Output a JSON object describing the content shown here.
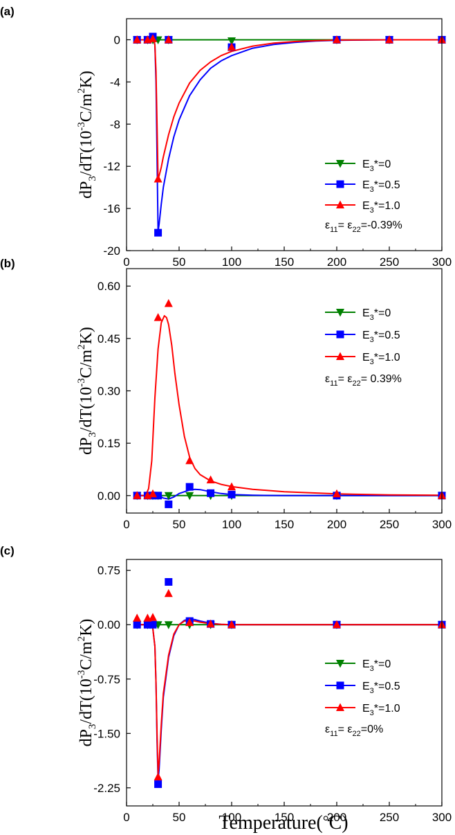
{
  "figure": {
    "xlabel_main": "Temperature(",
    "xlabel_degree": "°",
    "xlabel_unit": "C)"
  },
  "ylabel": {
    "p1": "dP",
    "s1": "3",
    "p2": "/dT(10",
    "s2": "-3",
    "p3": "C/m",
    "s3": "2",
    "p4": "K)"
  },
  "legend_text": {
    "prefix": "E",
    "sub": "3",
    "entries": [
      "*=0",
      "*=0.5",
      "*=1.0"
    ]
  },
  "chart_data": [
    {
      "type": "line",
      "panel_label": "(a)",
      "xlim": [
        0,
        300
      ],
      "ylim": [
        -20,
        2
      ],
      "x_ticks": [
        "0",
        "50",
        "100",
        "150",
        "200",
        "250",
        "300"
      ],
      "y_ticks": [
        "0",
        "-4",
        "-8",
        "-12",
        "-16",
        "-20"
      ],
      "y_tick_values": [
        0,
        -4,
        -8,
        -12,
        -16,
        -20
      ],
      "strain_label": {
        "e1": "ε",
        "s1": "11",
        "mid": "= ε",
        "s2": "22",
        "val": "=-0.39%"
      },
      "series": [
        {
          "name": "E3*=0",
          "color": "#008000",
          "marker": "triangle-down",
          "x": [
            10,
            20,
            25,
            30,
            40,
            100,
            200,
            250,
            300
          ],
          "y": [
            0,
            0,
            0,
            0,
            0,
            -0.1,
            0,
            0,
            0
          ],
          "curve": [
            [
              10,
              0
            ],
            [
              300,
              0
            ]
          ]
        },
        {
          "name": "E3*=0.5",
          "color": "#0000ff",
          "marker": "square",
          "x": [
            10,
            20,
            25,
            30,
            40,
            100,
            200,
            250,
            300
          ],
          "y": [
            0,
            0,
            0.3,
            -18.3,
            0,
            -0.7,
            0,
            0,
            0
          ],
          "curve": [
            [
              10,
              0
            ],
            [
              22,
              0
            ],
            [
              25,
              0.3
            ],
            [
              27,
              -0.5
            ],
            [
              28,
              -4
            ],
            [
              29,
              -11
            ],
            [
              30,
              -18.2
            ],
            [
              31,
              -17.5
            ],
            [
              33,
              -15.6
            ],
            [
              35,
              -14.0
            ],
            [
              40,
              -11.3
            ],
            [
              45,
              -9.2
            ],
            [
              50,
              -7.6
            ],
            [
              60,
              -5.3
            ],
            [
              70,
              -3.8
            ],
            [
              80,
              -2.7
            ],
            [
              90,
              -2.0
            ],
            [
              100,
              -1.5
            ],
            [
              120,
              -0.8
            ],
            [
              140,
              -0.45
            ],
            [
              160,
              -0.25
            ],
            [
              180,
              -0.12
            ],
            [
              200,
              -0.05
            ],
            [
              250,
              0
            ],
            [
              300,
              0
            ]
          ]
        },
        {
          "name": "E3*=1.0",
          "color": "#ff0000",
          "marker": "triangle-up",
          "x": [
            10,
            20,
            25,
            30,
            40,
            100,
            200,
            250,
            300
          ],
          "y": [
            0,
            0,
            0.1,
            -13.2,
            0,
            -0.7,
            0,
            0,
            0
          ],
          "curve": [
            [
              10,
              0
            ],
            [
              22,
              0
            ],
            [
              26,
              0.1
            ],
            [
              27,
              -0.5
            ],
            [
              28,
              -3
            ],
            [
              29,
              -8
            ],
            [
              30,
              -13.2
            ],
            [
              31,
              -12.9
            ],
            [
              33,
              -12.1
            ],
            [
              35,
              -11.1
            ],
            [
              40,
              -9.0
            ],
            [
              45,
              -7.3
            ],
            [
              50,
              -6.0
            ],
            [
              60,
              -4.1
            ],
            [
              70,
              -2.9
            ],
            [
              80,
              -2.1
            ],
            [
              90,
              -1.5
            ],
            [
              100,
              -1.1
            ],
            [
              120,
              -0.6
            ],
            [
              140,
              -0.32
            ],
            [
              160,
              -0.17
            ],
            [
              180,
              -0.08
            ],
            [
              200,
              -0.03
            ],
            [
              250,
              0
            ],
            [
              300,
              0
            ]
          ]
        }
      ]
    },
    {
      "type": "line",
      "panel_label": "(b)",
      "xlim": [
        0,
        300
      ],
      "ylim": [
        -0.05,
        0.65
      ],
      "x_ticks": [
        "0",
        "50",
        "100",
        "150",
        "200",
        "250",
        "300"
      ],
      "y_ticks": [
        "0.60",
        "0.45",
        "0.30",
        "0.15",
        "0.00"
      ],
      "y_tick_values": [
        0.6,
        0.45,
        0.3,
        0.15,
        0
      ],
      "strain_label": {
        "e1": "ε",
        "s1": "11",
        "mid": "= ε",
        "s2": "22",
        "val": "= 0.39%"
      },
      "series": [
        {
          "name": "E3*=0",
          "color": "#008000",
          "marker": "triangle-down",
          "x": [
            10,
            20,
            25,
            30,
            40,
            60,
            80,
            100,
            200,
            300
          ],
          "y": [
            0,
            0,
            0,
            0,
            0,
            0,
            0,
            0,
            0,
            0
          ],
          "curve": [
            [
              10,
              0
            ],
            [
              300,
              0
            ]
          ]
        },
        {
          "name": "E3*=0.5",
          "color": "#0000ff",
          "marker": "square",
          "x": [
            10,
            20,
            25,
            30,
            40,
            60,
            80,
            100,
            200,
            300
          ],
          "y": [
            0,
            0,
            0,
            0,
            -0.025,
            0.025,
            0.007,
            0.003,
            0,
            0
          ],
          "curve": [
            [
              10,
              0
            ],
            [
              30,
              0
            ],
            [
              35,
              -0.007
            ],
            [
              40,
              -0.01
            ],
            [
              45,
              -0.004
            ],
            [
              50,
              0.006
            ],
            [
              60,
              0.016
            ],
            [
              65,
              0.018
            ],
            [
              70,
              0.017
            ],
            [
              80,
              0.011
            ],
            [
              90,
              0.006
            ],
            [
              100,
              0.003
            ],
            [
              120,
              0.001
            ],
            [
              150,
              0
            ],
            [
              300,
              0
            ]
          ]
        },
        {
          "name": "E3*=1.0",
          "color": "#ff0000",
          "marker": "triangle-up",
          "x": [
            10,
            20,
            25,
            30,
            40,
            60,
            80,
            100,
            200,
            300
          ],
          "y": [
            0,
            0,
            0.005,
            0.51,
            0.55,
            0.1,
            0.045,
            0.025,
            0.005,
            0
          ],
          "curve": [
            [
              10,
              0
            ],
            [
              18,
              0
            ],
            [
              21,
              0.02
            ],
            [
              24,
              0.1
            ],
            [
              27,
              0.28
            ],
            [
              30,
              0.42
            ],
            [
              33,
              0.495
            ],
            [
              36,
              0.515
            ],
            [
              38,
              0.51
            ],
            [
              40,
              0.49
            ],
            [
              43,
              0.43
            ],
            [
              46,
              0.35
            ],
            [
              50,
              0.26
            ],
            [
              55,
              0.17
            ],
            [
              60,
              0.11
            ],
            [
              65,
              0.078
            ],
            [
              70,
              0.06
            ],
            [
              80,
              0.042
            ],
            [
              90,
              0.032
            ],
            [
              100,
              0.026
            ],
            [
              120,
              0.018
            ],
            [
              150,
              0.011
            ],
            [
              200,
              0.005
            ],
            [
              250,
              0.002
            ],
            [
              300,
              0.001
            ]
          ]
        }
      ]
    },
    {
      "type": "line",
      "panel_label": "(c)",
      "xlim": [
        0,
        300
      ],
      "ylim": [
        -2.5,
        0.9
      ],
      "x_ticks": [
        "0",
        "50",
        "100",
        "150",
        "200",
        "250",
        "300"
      ],
      "y_ticks": [
        "0.75",
        "0.00",
        "-0.75",
        "-1.50",
        "-2.25"
      ],
      "y_tick_values": [
        0.75,
        0,
        -0.75,
        -1.5,
        -2.25
      ],
      "strain_label": {
        "e1": "ε",
        "s1": "11",
        "mid": "= ε",
        "s2": "22",
        "val": "=0%"
      },
      "series": [
        {
          "name": "E3*=0",
          "color": "#008000",
          "marker": "triangle-down",
          "x": [
            10,
            20,
            25,
            30,
            40,
            60,
            80,
            100,
            200,
            300
          ],
          "y": [
            0,
            0,
            0,
            0,
            0,
            0,
            0,
            0,
            0,
            0
          ],
          "curve": [
            [
              10,
              0
            ],
            [
              300,
              0
            ]
          ]
        },
        {
          "name": "E3*=0.5",
          "color": "#0000ff",
          "marker": "square",
          "x": [
            10,
            20,
            25,
            30,
            40,
            60,
            80,
            100,
            200,
            300
          ],
          "y": [
            0,
            0,
            0,
            -2.2,
            0.59,
            0.05,
            0.01,
            0,
            0,
            0
          ],
          "curve": [
            [
              10,
              0
            ],
            [
              22,
              0
            ],
            [
              25,
              -0.05
            ],
            [
              27,
              -0.3
            ],
            [
              28,
              -0.8
            ],
            [
              29,
              -1.6
            ],
            [
              30,
              -2.15
            ],
            [
              31,
              -2.0
            ],
            [
              33,
              -1.45
            ],
            [
              35,
              -1.0
            ],
            [
              40,
              -0.45
            ],
            [
              45,
              -0.15
            ],
            [
              50,
              0
            ],
            [
              55,
              0.06
            ],
            [
              60,
              0.08
            ],
            [
              65,
              0.07
            ],
            [
              70,
              0.05
            ],
            [
              80,
              0.02
            ],
            [
              90,
              0.005
            ],
            [
              100,
              0
            ],
            [
              300,
              0
            ]
          ]
        },
        {
          "name": "E3*=1.0",
          "color": "#ff0000",
          "marker": "triangle-up",
          "x": [
            10,
            20,
            25,
            30,
            40,
            60,
            80,
            100,
            200,
            300
          ],
          "y": [
            0.09,
            0.09,
            0.1,
            -2.1,
            0.43,
            0.03,
            0.01,
            0,
            0,
            0
          ],
          "curve": [
            [
              10,
              0
            ],
            [
              22,
              0
            ],
            [
              25,
              -0.05
            ],
            [
              27,
              -0.3
            ],
            [
              28,
              -0.8
            ],
            [
              29,
              -1.5
            ],
            [
              30,
              -2.05
            ],
            [
              31,
              -1.9
            ],
            [
              33,
              -1.38
            ],
            [
              35,
              -0.95
            ],
            [
              40,
              -0.42
            ],
            [
              45,
              -0.13
            ],
            [
              50,
              0
            ],
            [
              55,
              0.05
            ],
            [
              60,
              0.06
            ],
            [
              65,
              0.05
            ],
            [
              70,
              0.035
            ],
            [
              80,
              0.015
            ],
            [
              90,
              0.004
            ],
            [
              100,
              0
            ],
            [
              300,
              0
            ]
          ]
        }
      ]
    }
  ]
}
